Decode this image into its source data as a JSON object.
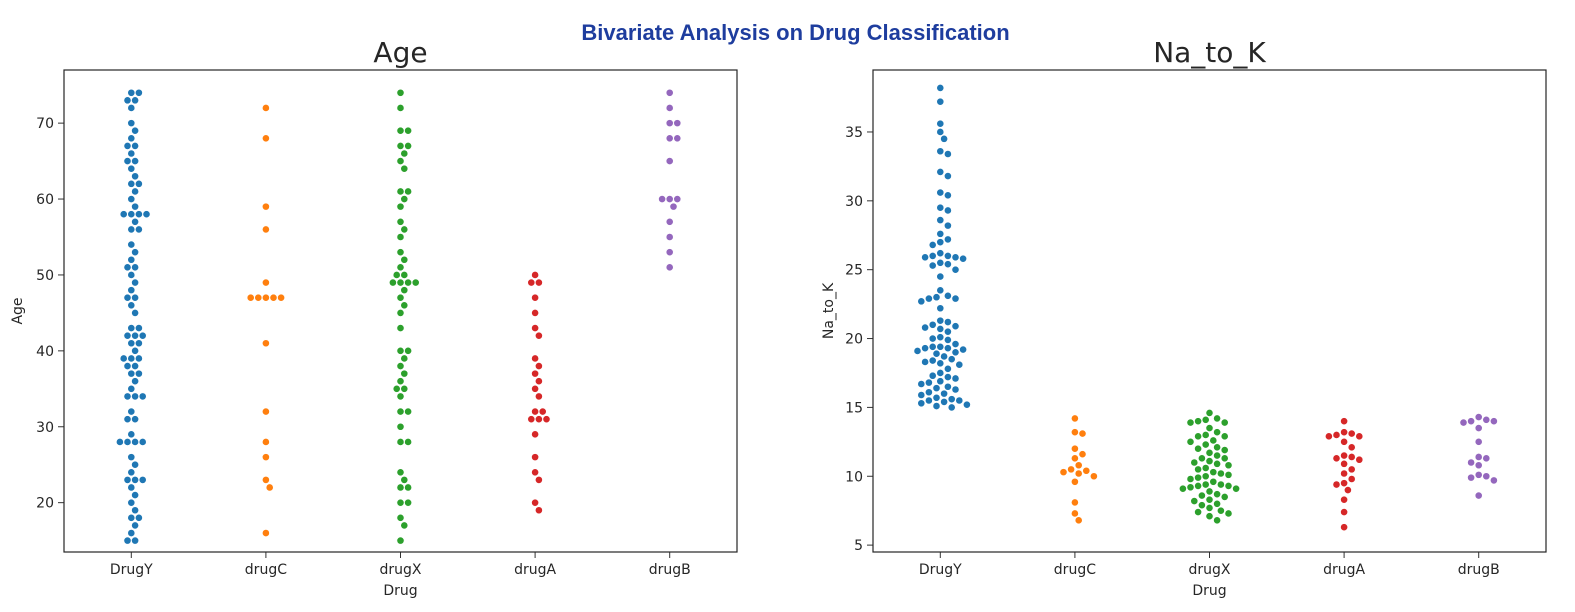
{
  "figure": {
    "suptitle": "Bivariate Analysis on Drug Classification",
    "palette": {
      "DrugY": "#1f77b4",
      "drugC": "#ff7f0e",
      "drugX": "#2ca02c",
      "drugA": "#d62728",
      "drugB": "#9467bd"
    }
  },
  "chart_data": [
    {
      "type": "scatter",
      "subtype": "swarm",
      "title": "Age",
      "xlabel": "Drug",
      "ylabel": "Age",
      "categories": [
        "DrugY",
        "drugC",
        "drugX",
        "drugA",
        "drugB"
      ],
      "ylim": [
        13.5,
        77
      ],
      "yticks": [
        20,
        30,
        40,
        50,
        60,
        70
      ],
      "grid": false,
      "legend": "none",
      "series": [
        {
          "category": "DrugY",
          "values": [
            74,
            74,
            73,
            73,
            72,
            70,
            69,
            68,
            67,
            67,
            66,
            65,
            65,
            64,
            63,
            62,
            62,
            61,
            60,
            59,
            58,
            58,
            58,
            58,
            57,
            56,
            56,
            54,
            53,
            52,
            51,
            51,
            50,
            49,
            48,
            47,
            47,
            46,
            45,
            43,
            43,
            42,
            42,
            42,
            41,
            41,
            40,
            39,
            39,
            39,
            38,
            38,
            37,
            37,
            36,
            35,
            34,
            34,
            34,
            32,
            31,
            31,
            29,
            28,
            28,
            28,
            28,
            26,
            25,
            24,
            23,
            23,
            23,
            22,
            21,
            20,
            19,
            18,
            18,
            17,
            16,
            15,
            15
          ]
        },
        {
          "category": "drugC",
          "values": [
            72,
            68,
            59,
            56,
            49,
            47,
            47,
            47,
            47,
            47,
            41,
            32,
            28,
            26,
            23,
            22,
            16
          ]
        },
        {
          "category": "drugX",
          "values": [
            74,
            72,
            69,
            69,
            67,
            67,
            66,
            65,
            64,
            61,
            61,
            60,
            59,
            57,
            56,
            55,
            53,
            52,
            51,
            50,
            50,
            49,
            49,
            49,
            49,
            48,
            47,
            46,
            45,
            43,
            40,
            40,
            39,
            38,
            37,
            36,
            35,
            35,
            34,
            32,
            32,
            30,
            28,
            28,
            24,
            23,
            22,
            22,
            20,
            20,
            18,
            17,
            15
          ]
        },
        {
          "category": "drugA",
          "values": [
            50,
            49,
            49,
            47,
            45,
            43,
            42,
            39,
            38,
            37,
            36,
            35,
            34,
            32,
            32,
            31,
            31,
            31,
            29,
            26,
            24,
            23,
            20,
            19
          ]
        },
        {
          "category": "drugB",
          "values": [
            74,
            72,
            70,
            70,
            68,
            68,
            65,
            60,
            60,
            60,
            59,
            57,
            55,
            53,
            51
          ]
        }
      ]
    },
    {
      "type": "scatter",
      "subtype": "swarm",
      "title": "Na_to_K",
      "xlabel": "Drug",
      "ylabel": "Na_to_K",
      "categories": [
        "DrugY",
        "drugC",
        "drugX",
        "drugA",
        "drugB"
      ],
      "ylim": [
        4.5,
        39.5
      ],
      "yticks": [
        5,
        10,
        15,
        20,
        25,
        30,
        35
      ],
      "grid": false,
      "legend": "none",
      "series": [
        {
          "category": "DrugY",
          "values": [
            38.2,
            37.2,
            35.6,
            35.0,
            34.5,
            33.6,
            33.4,
            32.1,
            31.8,
            30.6,
            30.4,
            29.5,
            29.3,
            28.6,
            28.2,
            27.6,
            27.2,
            27.0,
            26.8,
            26.2,
            26.0,
            26.0,
            25.9,
            25.9,
            25.8,
            25.5,
            25.4,
            25.3,
            25.0,
            24.5,
            23.5,
            23.1,
            23.0,
            22.9,
            22.9,
            22.7,
            22.2,
            21.3,
            21.2,
            21.0,
            20.9,
            20.8,
            20.7,
            20.5,
            20.1,
            20.0,
            19.9,
            19.6,
            19.4,
            19.4,
            19.3,
            19.3,
            19.2,
            19.1,
            19.0,
            18.9,
            18.7,
            18.5,
            18.4,
            18.3,
            18.2,
            18.1,
            17.8,
            17.5,
            17.3,
            17.2,
            17.1,
            16.9,
            16.8,
            16.7,
            16.5,
            16.4,
            16.3,
            16.1,
            16.0,
            15.9,
            15.7,
            15.6,
            15.5,
            15.5,
            15.4,
            15.3,
            15.2,
            15.1,
            15.0
          ]
        },
        {
          "category": "drugC",
          "values": [
            14.2,
            13.2,
            13.1,
            12.0,
            11.6,
            11.3,
            10.8,
            10.5,
            10.4,
            10.3,
            10.2,
            10.0,
            9.6,
            8.1,
            7.3,
            6.8
          ]
        },
        {
          "category": "drugX",
          "values": [
            14.6,
            14.2,
            14.1,
            14.0,
            13.9,
            13.9,
            13.5,
            13.2,
            13.0,
            12.9,
            12.9,
            12.6,
            12.5,
            12.3,
            12.1,
            12.0,
            11.9,
            11.7,
            11.5,
            11.3,
            11.3,
            11.1,
            11.0,
            10.9,
            10.8,
            10.6,
            10.5,
            10.3,
            10.2,
            10.1,
            10.0,
            9.9,
            9.8,
            9.6,
            9.4,
            9.4,
            9.3,
            9.3,
            9.2,
            9.1,
            9.1,
            8.9,
            8.7,
            8.6,
            8.5,
            8.3,
            8.2,
            8.0,
            7.9,
            7.7,
            7.5,
            7.4,
            7.3,
            7.1,
            6.8
          ]
        },
        {
          "category": "drugA",
          "values": [
            14.0,
            13.2,
            13.1,
            13.0,
            12.9,
            12.9,
            12.5,
            12.1,
            11.5,
            11.4,
            11.3,
            11.2,
            10.9,
            10.5,
            10.2,
            9.8,
            9.5,
            9.4,
            9.0,
            8.3,
            7.4,
            6.3
          ]
        },
        {
          "category": "drugB",
          "values": [
            14.3,
            14.1,
            14.0,
            14.0,
            13.9,
            13.5,
            12.5,
            11.4,
            11.3,
            11.0,
            10.8,
            10.1,
            10.0,
            9.9,
            9.7,
            8.6
          ]
        }
      ]
    }
  ]
}
